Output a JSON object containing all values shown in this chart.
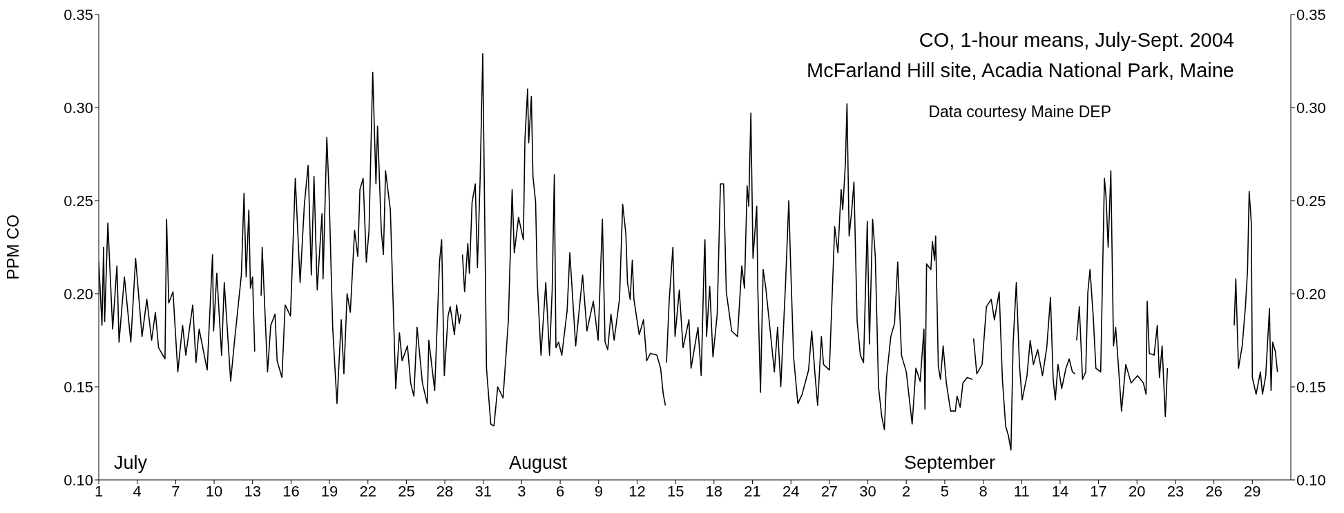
{
  "chart_data": {
    "type": "line",
    "title": "CO, 1-hour means, July-Sept. 2004",
    "subtitle": "McFarland Hill site, Acadia National Park, Maine",
    "ylabel": "PPM CO",
    "annotations": [
      "Data courtesy Maine DEP",
      "July",
      "August",
      "September"
    ],
    "xlim": [
      "2004-07-01",
      "2004-10-02"
    ],
    "xticks": [
      {
        "value": "2004-07-01",
        "label": "1"
      },
      {
        "value": "2004-07-04",
        "label": "4"
      },
      {
        "value": "2004-07-07",
        "label": "7"
      },
      {
        "value": "2004-07-10",
        "label": "10"
      },
      {
        "value": "2004-07-13",
        "label": "13"
      },
      {
        "value": "2004-07-16",
        "label": "16"
      },
      {
        "value": "2004-07-19",
        "label": "19"
      },
      {
        "value": "2004-07-22",
        "label": "22"
      },
      {
        "value": "2004-07-25",
        "label": "25"
      },
      {
        "value": "2004-07-28",
        "label": "28"
      },
      {
        "value": "2004-07-31",
        "label": "31"
      },
      {
        "value": "2004-08-03",
        "label": "3"
      },
      {
        "value": "2004-08-06",
        "label": "6"
      },
      {
        "value": "2004-08-09",
        "label": "9"
      },
      {
        "value": "2004-08-12",
        "label": "12"
      },
      {
        "value": "2004-08-15",
        "label": "15"
      },
      {
        "value": "2004-08-18",
        "label": "18"
      },
      {
        "value": "2004-08-21",
        "label": "21"
      },
      {
        "value": "2004-08-24",
        "label": "24"
      },
      {
        "value": "2004-08-27",
        "label": "27"
      },
      {
        "value": "2004-08-30",
        "label": "30"
      },
      {
        "value": "2004-09-02",
        "label": "2"
      },
      {
        "value": "2004-09-05",
        "label": "5"
      },
      {
        "value": "2004-09-08",
        "label": "8"
      },
      {
        "value": "2004-09-11",
        "label": "11"
      },
      {
        "value": "2004-09-14",
        "label": "14"
      },
      {
        "value": "2004-09-17",
        "label": "17"
      },
      {
        "value": "2004-09-20",
        "label": "20"
      },
      {
        "value": "2004-09-23",
        "label": "23"
      },
      {
        "value": "2004-09-26",
        "label": "26"
      },
      {
        "value": "2004-09-29",
        "label": "29"
      }
    ],
    "ylim": [
      0.1,
      0.35
    ],
    "yticks": [
      {
        "value": 0.1,
        "label": "0.10"
      },
      {
        "value": 0.15,
        "label": "0.15"
      },
      {
        "value": 0.2,
        "label": "0.20"
      },
      {
        "value": 0.25,
        "label": "0.25"
      },
      {
        "value": 0.3,
        "label": "0.30"
      },
      {
        "value": 0.35,
        "label": "0.35"
      }
    ],
    "y2lim": [
      0.1,
      0.35
    ],
    "y2ticks": [
      {
        "value": 0.1,
        "label": "0.10"
      },
      {
        "value": 0.15,
        "label": "0.15"
      },
      {
        "value": 0.2,
        "label": "0.20"
      },
      {
        "value": 0.25,
        "label": "0.25"
      },
      {
        "value": 0.3,
        "label": "0.30"
      },
      {
        "value": 0.35,
        "label": "0.35"
      }
    ],
    "marker": "none",
    "line_style": "solid",
    "series": [
      {
        "color": "#000000",
        "x": [
          "2004-07-01T00:00",
          "2004-07-01T06:00",
          "2004-07-01T09:00",
          "2004-07-01T11:00",
          "2004-07-01T17:00",
          "2004-07-02T02:00",
          "2004-07-02T10:00",
          "2004-07-02T14:00",
          "2004-07-03T00:00",
          "2004-07-03T12:00",
          "2004-07-03T21:00",
          "2004-07-04T09:00",
          "2004-07-04T18:00",
          "2004-07-05T03:00",
          "2004-07-05T10:00",
          "2004-07-05T16:00",
          "2004-07-06T04:00",
          "2004-07-06T07:00",
          "2004-07-06T11:00",
          "2004-07-06T19:00",
          "2004-07-07T04:00",
          "2004-07-07T13:00",
          "2004-07-07T19:00",
          "2004-07-08T08:00",
          "2004-07-08T14:00",
          "2004-07-08T20:00",
          "2004-07-09T11:00",
          "2004-07-09T21:00",
          "2004-07-09T23:00",
          "2004-07-10T05:00",
          "2004-07-10T14:00",
          "2004-07-10T19:00",
          "2004-07-11T07:00",
          "2004-07-11T14:00",
          "2004-07-12T03:00",
          "2004-07-12T08:00",
          "2004-07-12T12:00",
          "2004-07-12T17:00",
          "2004-07-12T20:00",
          "2004-07-13T00:00",
          "2004-07-13T04:00",
          "2004-07-13T09:00",
          "2004-07-13T16:00",
          "2004-07-13T18:00",
          "2004-07-14T04:00",
          "2004-07-14T10:00",
          "2004-07-14T18:00",
          "2004-07-14T22:00",
          "2004-07-15T07:00",
          "2004-07-15T13:00",
          "2004-07-15T23:00",
          "2004-07-16T08:00",
          "2004-07-16T17:00",
          "2004-07-17T01:00",
          "2004-07-17T08:00",
          "2004-07-17T14:00",
          "2004-07-17T19:00",
          "2004-07-18T01:00",
          "2004-07-18T10:00",
          "2004-07-18T12:00",
          "2004-07-18T19:00",
          "2004-07-18T23:00",
          "2004-07-19T06:00",
          "2004-07-19T14:00",
          "2004-07-19T22:00",
          "2004-07-20T03:00",
          "2004-07-20T09:00",
          "2004-07-20T15:00",
          "2004-07-20T23:00",
          "2004-07-21T05:00",
          "2004-07-21T09:00",
          "2004-07-21T15:00",
          "2004-07-21T21:00",
          "2004-07-22T02:00",
          "2004-07-22T09:00",
          "2004-07-22T15:00",
          "2004-07-22T18:00",
          "2004-07-23T01:00",
          "2004-07-23T05:00",
          "2004-07-23T09:00",
          "2004-07-23T18:00",
          "2004-07-24T04:00",
          "2004-07-24T11:00",
          "2004-07-24T16:00",
          "2004-07-25T02:00",
          "2004-07-25T08:00",
          "2004-07-25T14:00",
          "2004-07-25T20:00",
          "2004-07-26T06:00",
          "2004-07-26T15:00",
          "2004-07-26T18:00",
          "2004-07-27T05:00",
          "2004-07-27T14:00",
          "2004-07-27T18:00",
          "2004-07-27T23:00",
          "2004-07-28T06:00",
          "2004-07-28T10:00",
          "2004-07-28T18:00",
          "2004-07-28T22:00",
          "2004-07-29T03:00",
          "2004-07-29T06:00",
          "2004-07-29T07:00",
          "2004-07-29T09:00",
          "2004-07-29T13:00",
          "2004-07-29T19:00",
          "2004-07-29T22:00",
          "2004-07-30T03:00",
          "2004-07-30T09:00",
          "2004-07-30T13:00",
          "2004-07-30T18:00",
          "2004-07-30T23:00",
          "2004-07-31T06:00",
          "2004-07-31T14:00",
          "2004-07-31T20:00",
          "2004-08-01T03:00",
          "2004-08-01T13:00",
          "2004-08-01T23:00",
          "2004-08-02T06:00",
          "2004-08-02T10:00",
          "2004-08-02T18:00",
          "2004-08-03T03:00",
          "2004-08-03T06:00",
          "2004-08-03T11:00",
          "2004-08-03T13:00",
          "2004-08-03T18:00",
          "2004-08-03T21:00",
          "2004-08-04T02:00",
          "2004-08-04T05:00",
          "2004-08-04T12:00",
          "2004-08-04T21:00",
          "2004-08-05T04:00",
          "2004-08-05T09:00",
          "2004-08-05T13:00",
          "2004-08-05T16:00",
          "2004-08-05T21:00",
          "2004-08-06T03:00",
          "2004-08-06T13:00",
          "2004-08-06T18:00",
          "2004-08-07T05:00",
          "2004-08-07T18:00",
          "2004-08-08T02:00",
          "2004-08-08T14:00",
          "2004-08-08T23:00",
          "2004-08-09T07:00",
          "2004-08-09T12:00",
          "2004-08-09T17:00",
          "2004-08-09T23:00",
          "2004-08-10T05:00",
          "2004-08-10T15:00",
          "2004-08-10T21:00",
          "2004-08-11T03:00",
          "2004-08-11T06:00",
          "2004-08-11T11:00",
          "2004-08-11T15:00",
          "2004-08-11T18:00",
          "2004-08-12T04:00",
          "2004-08-12T12:00",
          "2004-08-12T18:00",
          "2004-08-13T01:00",
          "2004-08-13T13:00",
          "2004-08-13T20:00",
          "2004-08-14T01:00",
          "2004-08-14T05:00",
          "2004-08-14T06:00",
          "2004-08-14T07:00",
          "2004-08-14T12:00",
          "2004-08-14T19:00",
          "2004-08-14T23:00",
          "2004-08-15T07:00",
          "2004-08-15T14:00",
          "2004-08-16T01:00",
          "2004-08-16T05:00",
          "2004-08-16T18:00",
          "2004-08-17T00:00",
          "2004-08-17T06:00",
          "2004-08-17T07:00",
          "2004-08-17T10:00",
          "2004-08-17T16:00",
          "2004-08-17T22:00",
          "2004-08-18T06:00",
          "2004-08-18T12:00",
          "2004-08-18T18:00",
          "2004-08-18T23:00",
          "2004-08-19T09:00",
          "2004-08-19T20:00",
          "2004-08-20T04:00",
          "2004-08-20T09:00",
          "2004-08-20T14:00",
          "2004-08-20T17:00",
          "2004-08-20T21:00",
          "2004-08-21T01:00",
          "2004-08-21T08:00",
          "2004-08-21T10:00",
          "2004-08-21T15:00",
          "2004-08-21T20:00",
          "2004-08-22T01:00",
          "2004-08-22T11:00",
          "2004-08-22T17:00",
          "2004-08-22T23:00",
          "2004-08-23T05:00",
          "2004-08-23T14:00",
          "2004-08-23T20:00",
          "2004-08-23T23:00",
          "2004-08-24T05:00",
          "2004-08-24T13:00",
          "2004-08-24T21:00",
          "2004-08-25T09:00",
          "2004-08-25T15:00",
          "2004-08-25T21:00",
          "2004-08-26T02:00",
          "2004-08-26T09:00",
          "2004-08-26T13:00",
          "2004-08-27T00:00",
          "2004-08-27T10:00",
          "2004-08-27T16:00",
          "2004-08-27T22:00",
          "2004-08-28T01:00",
          "2004-08-28T06:00",
          "2004-08-28T09:00",
          "2004-08-28T13:00",
          "2004-08-28T18:00",
          "2004-08-28T22:00",
          "2004-08-29T04:00",
          "2004-08-29T10:00",
          "2004-08-29T16:00",
          "2004-08-29T23:00",
          "2004-08-30T03:00",
          "2004-08-30T09:00",
          "2004-08-30T14:00",
          "2004-08-30T20:00",
          "2004-08-31T02:00",
          "2004-08-31T07:00",
          "2004-08-31T11:00",
          "2004-08-31T19:00",
          "2004-09-01T02:00",
          "2004-09-01T08:00",
          "2004-09-01T15:00",
          "2004-09-02T00:00",
          "2004-09-02T11:00",
          "2004-09-02T18:00",
          "2004-09-03T02:00",
          "2004-09-03T09:00",
          "2004-09-03T11:00",
          "2004-09-03T14:00",
          "2004-09-03T22:00",
          "2004-09-04T01:00",
          "2004-09-04T05:00",
          "2004-09-04T07:00",
          "2004-09-04T12:00",
          "2004-09-04T16:00",
          "2004-09-04T21:00",
          "2004-09-05T03:00",
          "2004-09-05T11:00",
          "2004-09-05T20:00",
          "2004-09-05T23:00",
          "2004-09-06T05:00",
          "2004-09-06T10:00",
          "2004-09-06T18:00",
          "2004-09-07T04:00",
          "2004-09-07T05:00",
          "2004-09-07T06:00",
          "2004-09-07T12:00",
          "2004-09-07T22:00",
          "2004-09-08T06:00",
          "2004-09-08T15:00",
          "2004-09-08T21:00",
          "2004-09-09T06:00",
          "2004-09-09T12:00",
          "2004-09-09T18:00",
          "2004-09-09T23:00",
          "2004-09-10T04:00",
          "2004-09-10T08:00",
          "2004-09-10T14:00",
          "2004-09-10T20:00",
          "2004-09-11T01:00",
          "2004-09-11T10:00",
          "2004-09-11T16:00",
          "2004-09-11T22:00",
          "2004-09-12T06:00",
          "2004-09-12T15:00",
          "2004-09-12T23:00",
          "2004-09-13T06:00",
          "2004-09-13T11:00",
          "2004-09-13T15:00",
          "2004-09-13T20:00",
          "2004-09-14T03:00",
          "2004-09-14T11:00",
          "2004-09-14T17:00",
          "2004-09-14T23:00",
          "2004-09-15T04:00",
          "2004-09-15T05:00",
          "2004-09-15T07:00",
          "2004-09-15T12:00",
          "2004-09-15T18:00",
          "2004-09-16T00:00",
          "2004-09-16T04:00",
          "2004-09-16T08:00",
          "2004-09-16T14:00",
          "2004-09-16T19:00",
          "2004-09-17T04:00",
          "2004-09-17T11:00",
          "2004-09-17T14:00",
          "2004-09-17T18:00",
          "2004-09-17T23:00",
          "2004-09-18T04:00",
          "2004-09-18T08:00",
          "2004-09-18T13:00",
          "2004-09-18T19:00",
          "2004-09-19T03:00",
          "2004-09-19T13:00",
          "2004-09-20T01:00",
          "2004-09-20T12:00",
          "2004-09-20T17:00",
          "2004-09-20T19:00",
          "2004-09-20T23:00",
          "2004-09-21T08:00",
          "2004-09-21T14:00",
          "2004-09-21T18:00",
          "2004-09-21T23:00",
          "2004-09-22T05:00",
          "2004-09-22T09:00",
          "2004-09-25T00:00",
          "2004-09-27T14:00",
          "2004-09-27T17:00",
          "2004-09-27T22:00",
          "2004-09-28T05:00",
          "2004-09-28T11:00",
          "2004-09-28T15:00",
          "2004-09-28T18:00",
          "2004-09-28T22:00",
          "2004-09-29T00:00",
          "2004-09-29T07:00",
          "2004-09-29T15:00",
          "2004-09-29T19:00",
          "2004-09-30T01:00",
          "2004-09-30T08:00",
          "2004-09-30T11:00",
          "2004-09-30T14:00",
          "2004-09-30T19:00",
          "2004-09-30T23:00"
        ],
        "values": [
          0.217,
          0.183,
          0.225,
          0.185,
          0.238,
          0.181,
          0.215,
          0.174,
          0.209,
          0.174,
          0.219,
          0.177,
          0.197,
          0.175,
          0.19,
          0.171,
          0.165,
          0.24,
          0.195,
          0.201,
          0.158,
          0.183,
          0.167,
          0.194,
          0.163,
          0.181,
          0.159,
          0.221,
          0.18,
          0.211,
          0.167,
          0.206,
          0.153,
          0.174,
          0.21,
          0.254,
          0.209,
          0.245,
          0.203,
          0.209,
          0.169,
          null,
          0.199,
          0.225,
          0.158,
          0.183,
          0.189,
          0.164,
          0.155,
          0.194,
          0.188,
          0.262,
          0.206,
          0.248,
          0.269,
          0.21,
          0.263,
          0.202,
          0.243,
          0.208,
          0.284,
          0.256,
          0.182,
          0.141,
          0.186,
          0.157,
          0.2,
          0.19,
          0.234,
          0.22,
          0.256,
          0.262,
          0.217,
          0.234,
          0.319,
          0.259,
          0.29,
          0.234,
          0.221,
          0.266,
          0.245,
          0.149,
          0.179,
          0.164,
          0.172,
          0.152,
          0.145,
          0.182,
          0.152,
          0.141,
          0.175,
          0.148,
          0.217,
          0.229,
          0.156,
          0.188,
          0.193,
          0.178,
          0.194,
          0.184,
          0.189,
          null,
          0.221,
          0.201,
          0.227,
          0.211,
          0.249,
          0.259,
          0.214,
          0.261,
          0.329,
          0.16,
          0.13,
          0.129,
          0.15,
          0.144,
          0.186,
          0.256,
          0.222,
          0.241,
          0.229,
          0.283,
          0.31,
          0.281,
          0.306,
          0.263,
          0.249,
          0.207,
          0.167,
          0.206,
          0.167,
          0.202,
          0.264,
          0.171,
          0.174,
          0.167,
          0.191,
          0.222,
          0.172,
          0.21,
          0.18,
          0.196,
          0.175,
          0.24,
          0.174,
          0.17,
          0.189,
          0.175,
          0.197,
          0.248,
          0.232,
          0.206,
          0.197,
          0.218,
          0.197,
          0.178,
          0.186,
          0.164,
          0.168,
          0.167,
          0.16,
          0.146,
          0.14,
          null,
          0.163,
          0.196,
          0.225,
          0.177,
          0.202,
          0.171,
          0.186,
          0.16,
          0.182,
          0.156,
          0.223,
          0.229,
          0.177,
          0.204,
          0.166,
          0.189,
          0.259,
          0.259,
          0.201,
          0.18,
          0.177,
          0.215,
          0.203,
          0.258,
          0.247,
          0.297,
          0.219,
          0.247,
          0.203,
          0.147,
          0.213,
          0.203,
          0.175,
          0.158,
          0.182,
          0.15,
          0.206,
          0.25,
          0.22,
          0.166,
          0.141,
          0.146,
          0.159,
          0.18,
          0.157,
          0.14,
          0.177,
          0.162,
          0.159,
          0.236,
          0.222,
          0.256,
          0.245,
          0.27,
          0.302,
          0.231,
          0.245,
          0.26,
          0.185,
          0.167,
          0.163,
          0.239,
          0.173,
          0.24,
          0.22,
          0.15,
          0.134,
          0.127,
          0.155,
          0.177,
          0.184,
          0.217,
          0.167,
          0.158,
          0.13,
          0.16,
          0.153,
          0.181,
          0.138,
          0.216,
          0.213,
          0.228,
          0.218,
          0.231,
          0.161,
          0.154,
          0.172,
          0.152,
          0.137,
          0.137,
          0.145,
          0.139,
          0.152,
          0.155,
          0.154,
          null,
          0.176,
          0.157,
          0.162,
          0.193,
          0.197,
          0.186,
          0.201,
          0.154,
          0.129,
          0.124,
          0.116,
          0.173,
          0.206,
          0.161,
          0.143,
          0.156,
          0.175,
          0.162,
          0.17,
          0.156,
          0.171,
          0.198,
          0.154,
          0.143,
          0.162,
          0.149,
          0.16,
          0.165,
          0.158,
          0.157,
          null,
          0.175,
          0.193,
          0.154,
          0.158,
          0.201,
          0.213,
          0.188,
          0.16,
          0.158,
          0.262,
          0.252,
          0.225,
          0.266,
          0.172,
          0.182,
          0.162,
          0.137,
          0.162,
          0.152,
          0.156,
          0.152,
          0.146,
          0.196,
          0.168,
          0.167,
          0.183,
          0.155,
          0.172,
          0.134,
          0.16,
          null,
          0.183,
          0.208,
          0.16,
          0.172,
          0.193,
          0.213,
          0.255,
          0.238,
          0.155,
          0.146,
          0.158,
          0.146,
          0.156,
          0.192,
          0.148,
          0.174,
          0.169,
          0.158
        ]
      }
    ]
  }
}
